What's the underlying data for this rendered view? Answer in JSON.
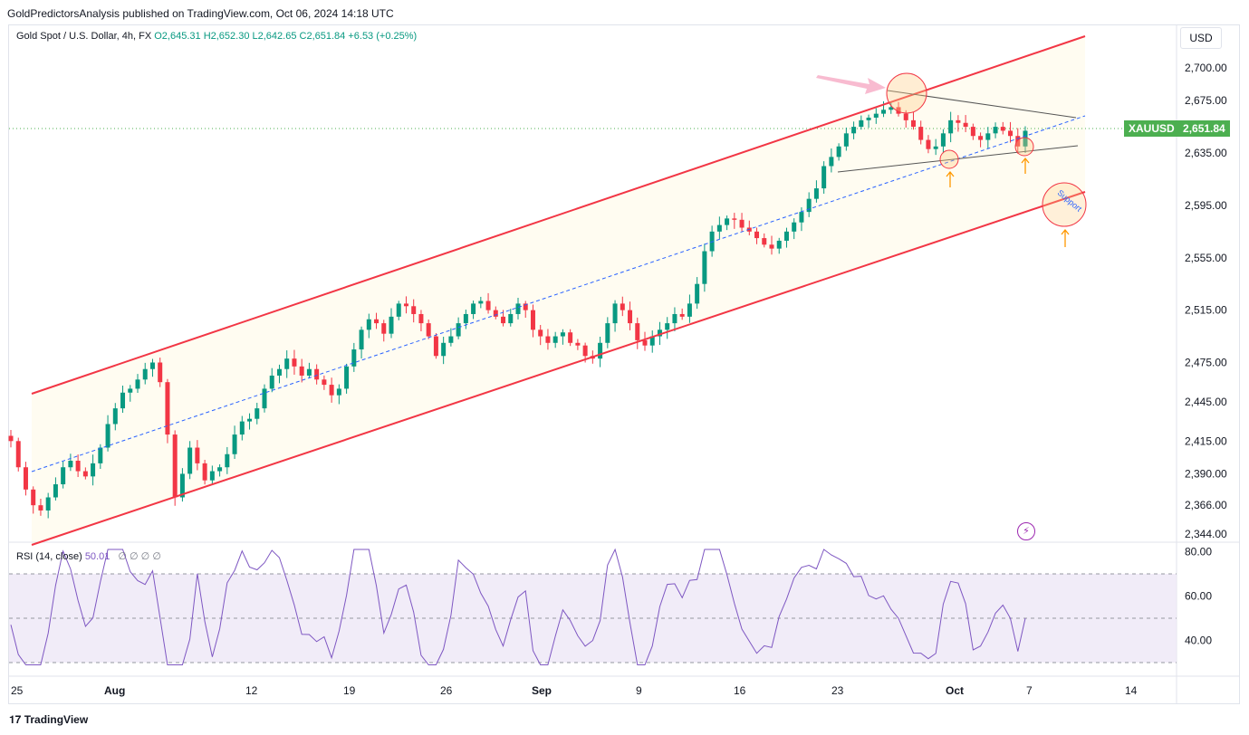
{
  "header": {
    "publisher_line": "GoldPredictorsAnalysis published on TradingView.com, Oct 06, 2024 14:18 UTC"
  },
  "legend": {
    "symbol": "Gold Spot / U.S. Dollar, 4h, FX",
    "open": "O2,645.31",
    "high": "H2,652.30",
    "low": "L2,642.65",
    "close": "C2,651.84",
    "change": "+6.53 (+0.25%)"
  },
  "rsi_legend": {
    "label": "RSI (14, close)",
    "value": "50.01",
    "nulls": "∅ ∅ ∅ ∅"
  },
  "currency": "USD",
  "last_price": {
    "symbol": "XAUUSD",
    "value": "2,651.84"
  },
  "annotation_text": "Support",
  "footer": {
    "brand": "TradingView"
  },
  "colors": {
    "up": "#089981",
    "down": "#f23645",
    "channel": "#f23645",
    "midline": "#2962ff",
    "rsi": "#7e57c2",
    "rsi_band": "#ede7f6",
    "price_tag": "#4caf50"
  },
  "chart_data": [
    {
      "type": "candlestick",
      "title": "Gold Spot / U.S. Dollar, 4h, FX",
      "y_ticks": [
        "2,700.00",
        "2,675.00",
        "2,635.00",
        "2,595.00",
        "2,555.00",
        "2,515.00",
        "2,475.00",
        "2,445.00",
        "2,415.00",
        "2,390.00",
        "2,366.00",
        "2,344.00"
      ],
      "x_ticks": [
        "25",
        "Aug",
        "12",
        "19",
        "26",
        "Sep",
        "9",
        "16",
        "23",
        "Oct",
        "7",
        "14"
      ],
      "ylim": [
        2334,
        2733
      ],
      "close_path": [
        2415,
        2395,
        2378,
        2366,
        2362,
        2372,
        2382,
        2395,
        2400,
        2392,
        2388,
        2398,
        2410,
        2428,
        2440,
        2452,
        2455,
        2462,
        2470,
        2475,
        2460,
        2420,
        2372,
        2390,
        2410,
        2398,
        2385,
        2392,
        2395,
        2405,
        2420,
        2430,
        2432,
        2440,
        2455,
        2465,
        2470,
        2478,
        2472,
        2465,
        2470,
        2462,
        2458,
        2450,
        2455,
        2472,
        2485,
        2500,
        2508,
        2505,
        2497,
        2510,
        2520,
        2518,
        2512,
        2505,
        2495,
        2480,
        2490,
        2495,
        2505,
        2512,
        2520,
        2522,
        2515,
        2510,
        2505,
        2512,
        2520,
        2515,
        2500,
        2495,
        2490,
        2495,
        2498,
        2490,
        2488,
        2480,
        2478,
        2490,
        2505,
        2520,
        2515,
        2505,
        2492,
        2488,
        2495,
        2500,
        2505,
        2512,
        2510,
        2520,
        2535,
        2560,
        2575,
        2580,
        2585,
        2584,
        2578,
        2575,
        2570,
        2565,
        2562,
        2568,
        2575,
        2582,
        2590,
        2600,
        2608,
        2625,
        2632,
        2640,
        2650,
        2655,
        2660,
        2662,
        2665,
        2668,
        2670,
        2665,
        2660,
        2655,
        2645,
        2638,
        2640,
        2650,
        2660,
        2658,
        2655,
        2648,
        2645,
        2650,
        2655,
        2652,
        2648,
        2640,
        2652
      ],
      "annotations": [
        "rising channel",
        "dashed midline",
        "symmetrical triangle",
        "Support"
      ]
    },
    {
      "type": "line",
      "title": "RSI (14, close)",
      "y_ticks": [
        "80.00",
        "60.00",
        "40.00"
      ],
      "ylim": [
        25,
        85
      ],
      "bands": [
        30,
        50,
        70
      ],
      "last_value": 50.01
    }
  ]
}
